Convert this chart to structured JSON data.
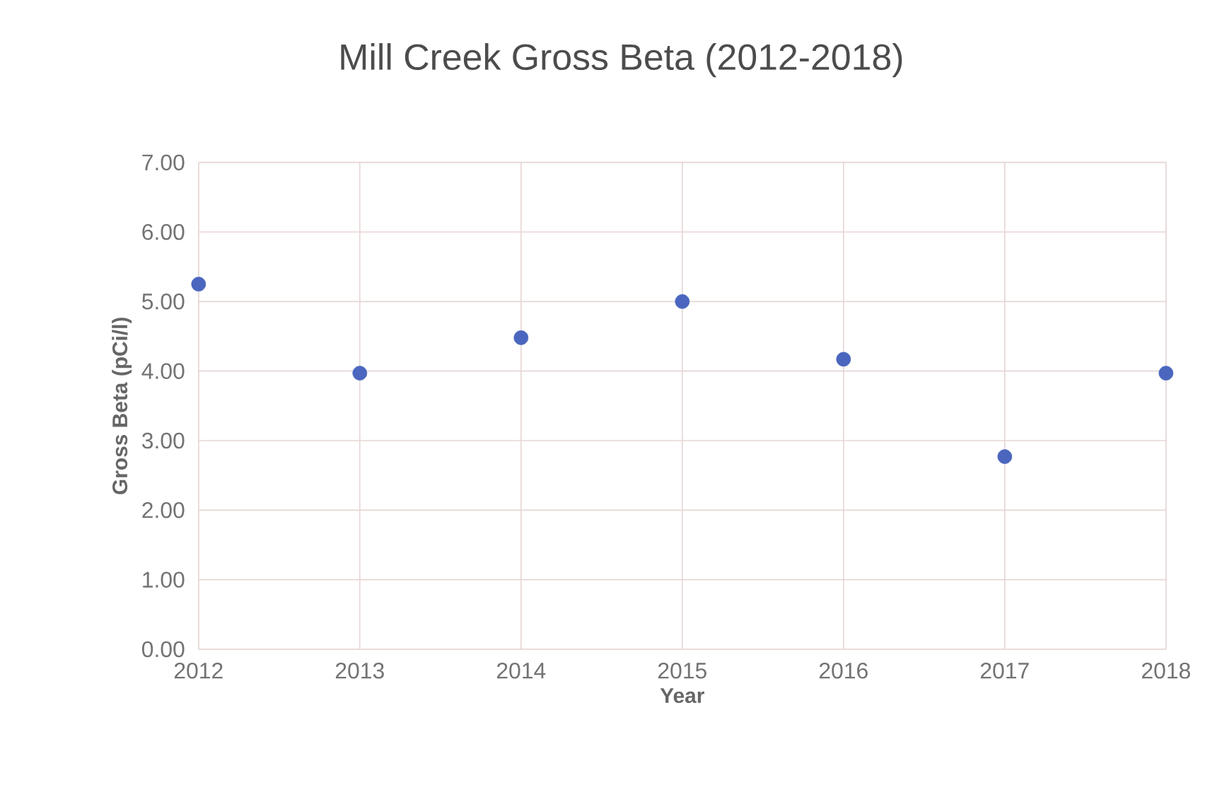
{
  "chart_data": {
    "type": "scatter",
    "title": "Mill Creek Gross Beta (2012-2018)",
    "xlabel": "Year",
    "ylabel": "Gross Beta (pCi/l)",
    "x": [
      2012,
      2013,
      2014,
      2015,
      2016,
      2017,
      2018
    ],
    "values": [
      5.25,
      3.97,
      4.48,
      5.0,
      4.17,
      2.77,
      3.97
    ],
    "color": "#4a66be",
    "marker": "circle",
    "grid": true,
    "xlim": [
      2012,
      2018
    ],
    "xticks": [
      2012,
      2013,
      2014,
      2015,
      2016,
      2017,
      2018
    ],
    "ylim": [
      0,
      7
    ],
    "yticks": [
      {
        "value": 0,
        "label": "0.00"
      },
      {
        "value": 1,
        "label": "1.00"
      },
      {
        "value": 2,
        "label": "2.00"
      },
      {
        "value": 3,
        "label": "3.00"
      },
      {
        "value": 4,
        "label": "4.00"
      },
      {
        "value": 5,
        "label": "5.00"
      },
      {
        "value": 6,
        "label": "6.00"
      },
      {
        "value": 7,
        "label": "7.00"
      }
    ]
  }
}
